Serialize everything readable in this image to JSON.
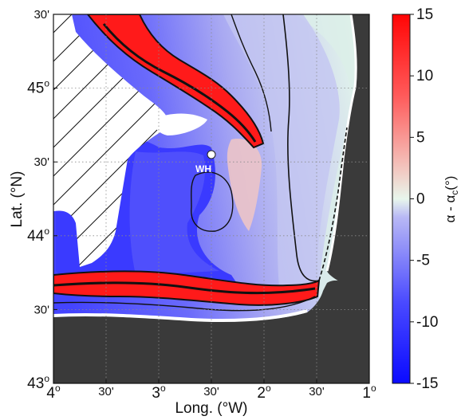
{
  "map": {
    "xaxis": {
      "title": "Long. (°W)",
      "ticks": [
        {
          "value": 4.0,
          "deg": "4",
          "min": ""
        },
        {
          "value": 3.5,
          "deg": "",
          "min": "30'"
        },
        {
          "value": 3.0,
          "deg": "3",
          "min": ""
        },
        {
          "value": 2.5,
          "deg": "",
          "min": "30'"
        },
        {
          "value": 2.0,
          "deg": "2",
          "min": ""
        },
        {
          "value": 1.5,
          "deg": "",
          "min": "30'"
        },
        {
          "value": 1.0,
          "deg": "1",
          "min": ""
        }
      ]
    },
    "yaxis": {
      "title": "Lat. (°N)",
      "ticks": [
        {
          "value": 45.5,
          "deg": "",
          "min": "30'"
        },
        {
          "value": 45.0,
          "deg": "45",
          "min": ""
        },
        {
          "value": 44.5,
          "deg": "",
          "min": "30'"
        },
        {
          "value": 44.0,
          "deg": "44",
          "min": ""
        },
        {
          "value": 43.5,
          "deg": "",
          "min": "30'"
        },
        {
          "value": 43.0,
          "deg": "43",
          "min": ""
        }
      ]
    },
    "station": {
      "label": "WH",
      "lon": 2.5,
      "lat": 44.55
    },
    "colorbar": {
      "label": "α - α_c(°)",
      "label_main": "α - α",
      "label_sub": "c",
      "label_unit": "(°)",
      "min": -15,
      "max": 15,
      "ticks": [
        "15",
        "10",
        "5",
        "0",
        "-5",
        "-10",
        "-15"
      ],
      "colors": {
        "low": "#1010ff",
        "mid": "#e8f6ec",
        "high": "#ff0a0a"
      }
    },
    "colors": {
      "land": "#3a3a3a",
      "no_data": "#ffffff",
      "deep_water": "#3c3cff",
      "shelf_water": "#b6b6f2",
      "coastal_water": "#dff3ea",
      "slope_red": "#ff1a1a"
    }
  }
}
